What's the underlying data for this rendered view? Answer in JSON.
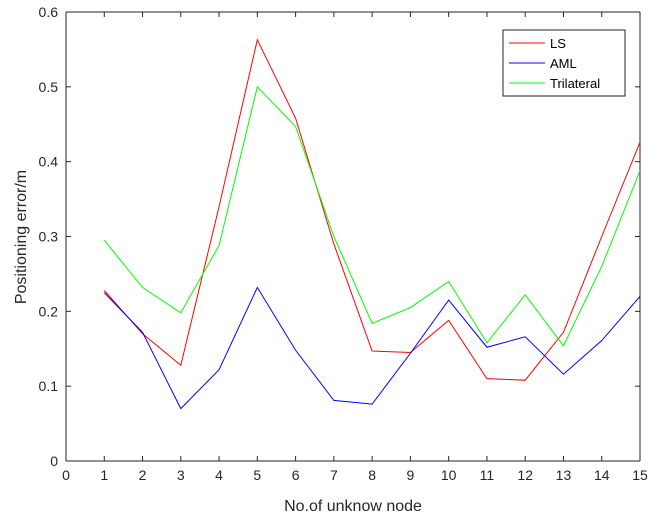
{
  "chart_data": {
    "type": "line",
    "title": "",
    "xlabel": "No.of unknow node",
    "ylabel": "Positioning error/m",
    "xlim": [
      0,
      15
    ],
    "ylim": [
      0,
      0.6
    ],
    "xticks": [
      0,
      1,
      2,
      3,
      4,
      5,
      6,
      7,
      8,
      9,
      10,
      11,
      12,
      13,
      14,
      15
    ],
    "yticks": [
      0,
      0.1,
      0.2,
      0.3,
      0.4,
      0.5,
      0.6
    ],
    "grid": false,
    "legend": "top-right",
    "x": [
      1,
      2,
      3,
      4,
      5,
      6,
      7,
      8,
      9,
      10,
      11,
      12,
      13,
      14,
      15
    ],
    "series": [
      {
        "name": "LS",
        "color": "#ff0000",
        "values": [
          0.228,
          0.17,
          0.128,
          0.34,
          0.563,
          0.458,
          0.29,
          0.147,
          0.145,
          0.188,
          0.11,
          0.108,
          0.172,
          0.3,
          0.426
        ]
      },
      {
        "name": "AML",
        "color": "#0000ff",
        "values": [
          0.225,
          0.172,
          0.07,
          0.122,
          0.232,
          0.148,
          0.081,
          0.076,
          0.144,
          0.215,
          0.152,
          0.166,
          0.116,
          0.161,
          0.22
        ]
      },
      {
        "name": "Trilateral",
        "color": "#00ff00",
        "values": [
          0.295,
          0.232,
          0.198,
          0.288,
          0.5,
          0.447,
          0.3,
          0.184,
          0.205,
          0.24,
          0.158,
          0.222,
          0.154,
          0.26,
          0.388
        ]
      }
    ]
  }
}
